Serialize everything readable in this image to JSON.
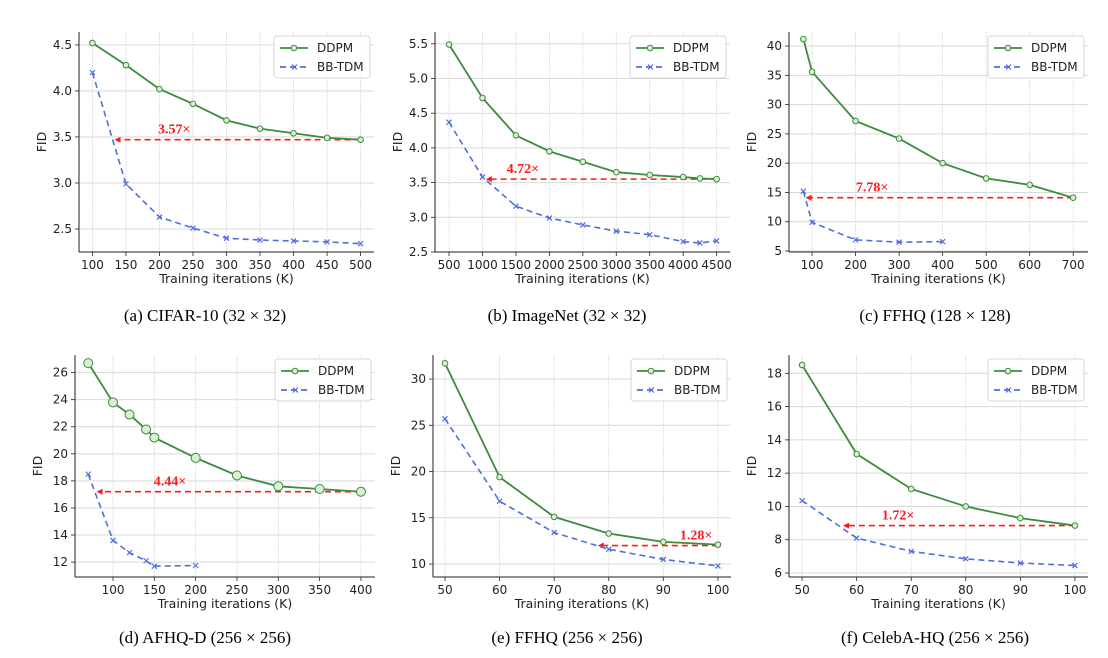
{
  "colors": {
    "ddpm": "#3d8b3d",
    "ddpm_marker_fill": "#d9f0d3",
    "bbtdm": "#4f6fe0",
    "annotation": "#ff1a1a",
    "grid": "#d9d9d9"
  },
  "chart_data": [
    {
      "type": "line",
      "caption": "(a) CIFAR-10 (32 × 32)",
      "xlabel": "Training iterations (K)",
      "ylabel": "FID",
      "xlim": [
        80,
        520
      ],
      "ylim": [
        2.25,
        4.64
      ],
      "xticks": [
        100,
        150,
        200,
        250,
        300,
        350,
        400,
        450,
        500
      ],
      "yticks": [
        2.5,
        3.0,
        3.5,
        4.0,
        4.5
      ],
      "ytick_decimals": 1,
      "grid": true,
      "legend": "top-right",
      "series": [
        {
          "name": "DDPM",
          "x": [
            100,
            150,
            200,
            250,
            300,
            350,
            400,
            450,
            500
          ],
          "y": [
            4.52,
            4.28,
            4.02,
            3.86,
            3.68,
            3.59,
            3.54,
            3.49,
            3.47
          ]
        },
        {
          "name": "BB-TDM",
          "x": [
            100,
            150,
            200,
            250,
            300,
            350,
            400,
            450,
            500
          ],
          "y": [
            4.2,
            2.99,
            2.63,
            2.51,
            2.4,
            2.38,
            2.37,
            2.36,
            2.34
          ]
        }
      ],
      "annotation": {
        "text": "3.57×",
        "y": 3.47,
        "x_from": 500,
        "x_to": 133,
        "label_x": 222
      }
    },
    {
      "type": "line",
      "caption": "(b) ImageNet (32 × 32)",
      "xlabel": "Training iterations (K)",
      "ylabel": "FID",
      "xlim": [
        290,
        4700
      ],
      "ylim": [
        2.5,
        5.67
      ],
      "xticks": [
        500,
        1000,
        1500,
        2000,
        2500,
        3000,
        3500,
        4000,
        4500
      ],
      "yticks": [
        2.5,
        3.0,
        3.5,
        4.0,
        4.5,
        5.0,
        5.5
      ],
      "ytick_decimals": 1,
      "grid": true,
      "legend": "top-right",
      "series": [
        {
          "name": "DDPM",
          "x": [
            500,
            1000,
            1500,
            2000,
            2500,
            3000,
            3500,
            4000,
            4250,
            4500
          ],
          "y": [
            5.49,
            4.72,
            4.18,
            3.95,
            3.8,
            3.65,
            3.61,
            3.58,
            3.56,
            3.55
          ]
        },
        {
          "name": "BB-TDM",
          "x": [
            500,
            1000,
            1500,
            2000,
            2500,
            3000,
            3500,
            4000,
            4250,
            4500
          ],
          "y": [
            4.37,
            3.58,
            3.16,
            2.99,
            2.89,
            2.8,
            2.75,
            2.65,
            2.63,
            2.66
          ]
        }
      ],
      "annotation": {
        "text": "4.72×",
        "y": 3.55,
        "x_from": 4500,
        "x_to": 1050,
        "label_x": 1604
      }
    },
    {
      "type": "line",
      "caption": "(c) FFHQ (128 × 128)",
      "xlabel": "Training iterations (K)",
      "ylabel": "FID",
      "xlim": [
        47,
        734
      ],
      "ylim": [
        4.83,
        42.4
      ],
      "xticks": [
        100,
        200,
        300,
        400,
        500,
        600,
        700
      ],
      "yticks": [
        5,
        10,
        15,
        20,
        25,
        30,
        35,
        40
      ],
      "ytick_decimals": 0,
      "grid": true,
      "legend": "top-right",
      "series": [
        {
          "name": "DDPM",
          "x": [
            80,
            100,
            200,
            300,
            400,
            500,
            600,
            700
          ],
          "y": [
            41.2,
            35.6,
            27.2,
            24.2,
            20.0,
            17.4,
            16.3,
            14.1
          ]
        },
        {
          "name": "BB-TDM",
          "x": [
            80,
            100,
            200,
            300,
            400
          ],
          "y": [
            15.2,
            9.9,
            6.9,
            6.5,
            6.6
          ]
        }
      ],
      "annotation": {
        "text": "7.78×",
        "y": 14.1,
        "x_from": 700,
        "x_to": 85,
        "label_x": 238
      }
    },
    {
      "type": "line",
      "caption": "(d) AFHQ-D (256 × 256)",
      "xlabel": "Training iterations (K)",
      "ylabel": "FID",
      "xlim": [
        54,
        417
      ],
      "ylim": [
        10.9,
        27.3
      ],
      "xticks": [
        100,
        150,
        200,
        250,
        300,
        350,
        400
      ],
      "yticks": [
        12,
        14,
        16,
        18,
        20,
        22,
        24,
        26
      ],
      "ytick_decimals": 0,
      "grid": true,
      "legend": "top-right",
      "series": [
        {
          "name": "DDPM",
          "x": [
            70,
            100,
            120,
            140,
            150,
            200,
            250,
            300,
            350,
            400
          ],
          "y": [
            26.7,
            23.8,
            22.9,
            21.8,
            21.2,
            19.7,
            18.4,
            17.6,
            17.4,
            17.2
          ]
        },
        {
          "name": "BB-TDM",
          "x": [
            70,
            100,
            120,
            140,
            150,
            200
          ],
          "y": [
            18.5,
            13.6,
            12.7,
            12.1,
            11.7,
            11.75
          ]
        }
      ],
      "annotation": {
        "text": "4.44×",
        "y": 17.2,
        "x_from": 400,
        "x_to": 80,
        "label_x": 169
      }
    },
    {
      "type": "line",
      "caption": "(e) FFHQ (256 × 256)",
      "xlabel": "Training iterations (K)",
      "ylabel": "FID",
      "xlim": [
        47.8,
        102.4
      ],
      "ylim": [
        8.6,
        32.6
      ],
      "xticks": [
        50,
        60,
        70,
        80,
        90,
        100
      ],
      "yticks": [
        10,
        15,
        20,
        25,
        30
      ],
      "ytick_decimals": 0,
      "grid": true,
      "legend": "top-right",
      "series": [
        {
          "name": "DDPM",
          "x": [
            50,
            60,
            70,
            80,
            90,
            100
          ],
          "y": [
            31.7,
            19.4,
            15.1,
            13.3,
            12.4,
            12.1
          ]
        },
        {
          "name": "BB-TDM",
          "x": [
            50,
            60,
            70,
            80,
            90,
            100
          ],
          "y": [
            25.7,
            16.8,
            13.4,
            11.6,
            10.5,
            9.8
          ]
        }
      ],
      "annotation": {
        "text": "1.28×",
        "y": 12.0,
        "x_from": 100,
        "x_to": 78,
        "label_x": 96
      }
    },
    {
      "type": "line",
      "caption": "(f) CelebA-HQ (256 × 256)",
      "xlabel": "Training iterations (K)",
      "ylabel": "FID",
      "xlim": [
        47.6,
        102.4
      ],
      "ylim": [
        5.76,
        19.1
      ],
      "xticks": [
        50,
        60,
        70,
        80,
        90,
        100
      ],
      "yticks": [
        6,
        8,
        10,
        12,
        14,
        16,
        18
      ],
      "ytick_decimals": 0,
      "grid": true,
      "legend": "top-right",
      "series": [
        {
          "name": "DDPM",
          "x": [
            50,
            60,
            70,
            80,
            90,
            100
          ],
          "y": [
            18.5,
            13.15,
            11.05,
            10.0,
            9.3,
            8.85
          ]
        },
        {
          "name": "BB-TDM",
          "x": [
            50,
            60,
            70,
            80,
            90,
            100
          ],
          "y": [
            10.35,
            8.1,
            7.3,
            6.85,
            6.6,
            6.45
          ]
        }
      ],
      "annotation": {
        "text": "1.72×",
        "y": 8.85,
        "x_from": 100,
        "x_to": 57.5,
        "label_x": 67.6
      }
    }
  ]
}
